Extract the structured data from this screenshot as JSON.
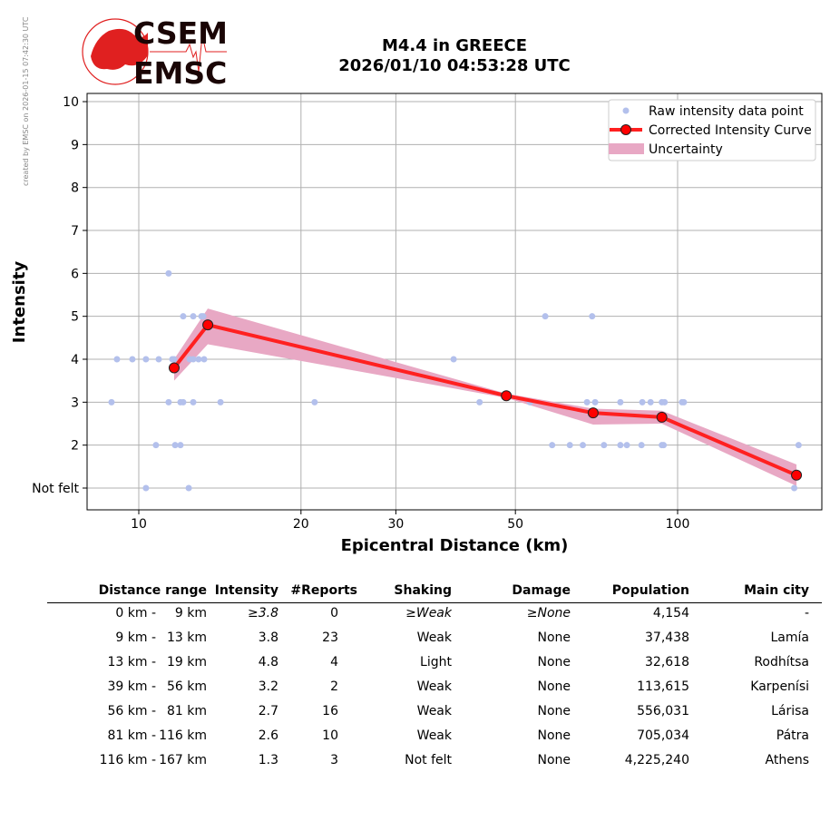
{
  "credit": "created by EMSC on 2026-01-15 07:42:30 UTC",
  "logo": {
    "top": "CSEM",
    "bottom": "EMSC"
  },
  "colors": {
    "raw": "#b3c0ec",
    "curve": "#ff2020",
    "band": "#e8a8c4",
    "marker": "#ff0000"
  },
  "chart_data": {
    "type": "line",
    "title": "M4.4 in GREECE",
    "subtitle": "2026/01/10 04:53:28 UTC",
    "xlabel": "Epicentral Distance (km)",
    "ylabel": "Intensity",
    "xscale": "log",
    "xlim": [
      8.0,
      185
    ],
    "ylim": [
      0.5,
      10.2
    ],
    "xticks": [
      10,
      20,
      30,
      50,
      100
    ],
    "yticks": [
      {
        "v": 1,
        "label": "Not felt"
      },
      {
        "v": 2,
        "label": "2"
      },
      {
        "v": 3,
        "label": "3"
      },
      {
        "v": 4,
        "label": "4"
      },
      {
        "v": 5,
        "label": "5"
      },
      {
        "v": 6,
        "label": "6"
      },
      {
        "v": 7,
        "label": "7"
      },
      {
        "v": 8,
        "label": "8"
      },
      {
        "v": 9,
        "label": "9"
      },
      {
        "v": 10,
        "label": "10"
      }
    ],
    "grid": true,
    "legend_position": "top-right",
    "legend": [
      "Raw intensity data point",
      "Corrected Intensity Curve",
      "Uncertainty"
    ],
    "raw_points": [
      [
        11.36,
        6
      ],
      [
        12.09,
        5
      ],
      [
        12.62,
        5
      ],
      [
        13.07,
        5
      ],
      [
        13.17,
        5
      ],
      [
        56.8,
        5
      ],
      [
        69.4,
        5
      ],
      [
        9.11,
        4
      ],
      [
        9.73,
        4
      ],
      [
        10.31,
        4
      ],
      [
        10.89,
        4
      ],
      [
        11.54,
        4
      ],
      [
        11.63,
        4
      ],
      [
        12.43,
        4
      ],
      [
        12.62,
        4
      ],
      [
        12.91,
        4
      ],
      [
        13.22,
        4
      ],
      [
        38.4,
        4
      ],
      [
        8.9,
        3
      ],
      [
        11.36,
        3
      ],
      [
        11.95,
        3
      ],
      [
        12.09,
        3
      ],
      [
        12.62,
        3
      ],
      [
        14.18,
        3
      ],
      [
        21.2,
        3
      ],
      [
        42.9,
        3
      ],
      [
        53.2,
        3
      ],
      [
        67.9,
        3
      ],
      [
        70.3,
        3
      ],
      [
        78.3,
        3
      ],
      [
        86.0,
        3
      ],
      [
        89.1,
        3
      ],
      [
        93.5,
        3
      ],
      [
        94.6,
        3
      ],
      [
        101.9,
        3
      ],
      [
        102.7,
        3
      ],
      [
        10.76,
        2
      ],
      [
        11.68,
        2
      ],
      [
        11.95,
        2
      ],
      [
        58.5,
        2
      ],
      [
        63.1,
        2
      ],
      [
        66.7,
        2
      ],
      [
        73.0,
        2
      ],
      [
        78.3,
        2
      ],
      [
        80.5,
        2
      ],
      [
        85.7,
        2
      ],
      [
        93.5,
        2
      ],
      [
        94.2,
        2
      ],
      [
        167.7,
        2
      ],
      [
        10.31,
        1
      ],
      [
        12.38,
        1
      ],
      [
        164.6,
        1
      ]
    ],
    "curve": [
      [
        11.63,
        3.8
      ],
      [
        13.43,
        4.8
      ],
      [
        48.1,
        3.15
      ],
      [
        69.7,
        2.75
      ],
      [
        93.5,
        2.65
      ],
      [
        166.2,
        1.3
      ]
    ],
    "uncertainty_lower": [
      3.5,
      4.35,
      3.1,
      2.48,
      2.5,
      1.05
    ],
    "uncertainty_upper": [
      4.0,
      5.18,
      3.2,
      2.85,
      2.8,
      1.55
    ]
  },
  "table": {
    "headers": [
      "Distance range",
      "Intensity",
      "#Reports",
      "Shaking",
      "Damage",
      "Population",
      "Main city"
    ],
    "rows": [
      {
        "from": "0 km -",
        "to": "9 km",
        "intensity": "≥3.8",
        "reports": "0",
        "shaking": "≥Weak",
        "damage": "≥None",
        "population": "4,154",
        "city": "-",
        "italic": true
      },
      {
        "from": "9 km -",
        "to": "13 km",
        "intensity": "3.8",
        "reports": "23",
        "shaking": "Weak",
        "damage": "None",
        "population": "37,438",
        "city": "Lamía"
      },
      {
        "from": "13 km -",
        "to": "19 km",
        "intensity": "4.8",
        "reports": "4",
        "shaking": "Light",
        "damage": "None",
        "population": "32,618",
        "city": "Rodhítsa"
      },
      {
        "from": "39 km -",
        "to": "56 km",
        "intensity": "3.2",
        "reports": "2",
        "shaking": "Weak",
        "damage": "None",
        "population": "113,615",
        "city": "Karpenísi"
      },
      {
        "from": "56 km -",
        "to": "81 km",
        "intensity": "2.7",
        "reports": "16",
        "shaking": "Weak",
        "damage": "None",
        "population": "556,031",
        "city": "Lárisa"
      },
      {
        "from": "81 km -",
        "to": "116 km",
        "intensity": "2.6",
        "reports": "10",
        "shaking": "Weak",
        "damage": "None",
        "population": "705,034",
        "city": "Pátra"
      },
      {
        "from": "116 km -",
        "to": "167 km",
        "intensity": "1.3",
        "reports": "3",
        "shaking": "Not felt",
        "damage": "None",
        "population": "4,225,240",
        "city": "Athens"
      }
    ]
  }
}
